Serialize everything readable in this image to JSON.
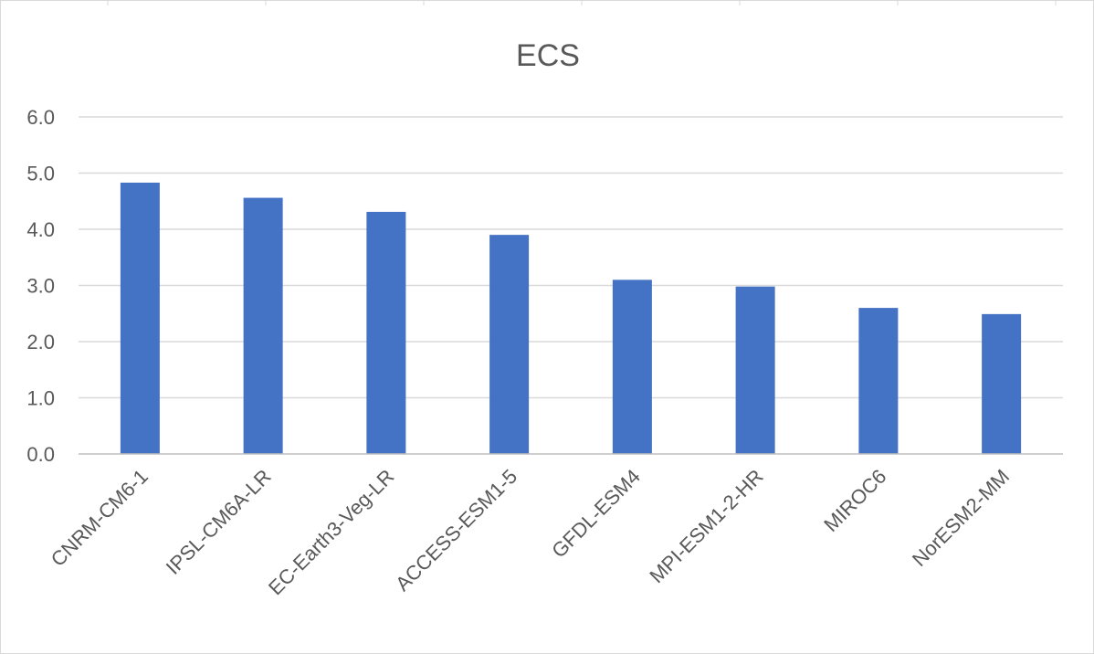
{
  "chart_data": {
    "type": "bar",
    "title": "ECS",
    "xlabel": "",
    "ylabel": "",
    "categories": [
      "CNRM-CM6-1",
      "IPSL-CM6A-LR",
      "EC-Earth3-Veg-LR",
      "ACCESS-ESM1-5",
      "GFDL-ESM4",
      "MPI-ESM1-2-HR",
      "MIROC6",
      "NorESM2-MM"
    ],
    "series": [
      {
        "values": [
          4.83,
          4.56,
          4.31,
          3.9,
          3.1,
          2.98,
          2.6,
          2.49
        ]
      }
    ],
    "ylim": [
      0,
      6
    ],
    "yticks": [
      "0.0",
      "1.0",
      "2.0",
      "3.0",
      "4.0",
      "5.0",
      "6.0"
    ],
    "grid": true,
    "legend": "none",
    "bar_color": "#4472c4"
  }
}
